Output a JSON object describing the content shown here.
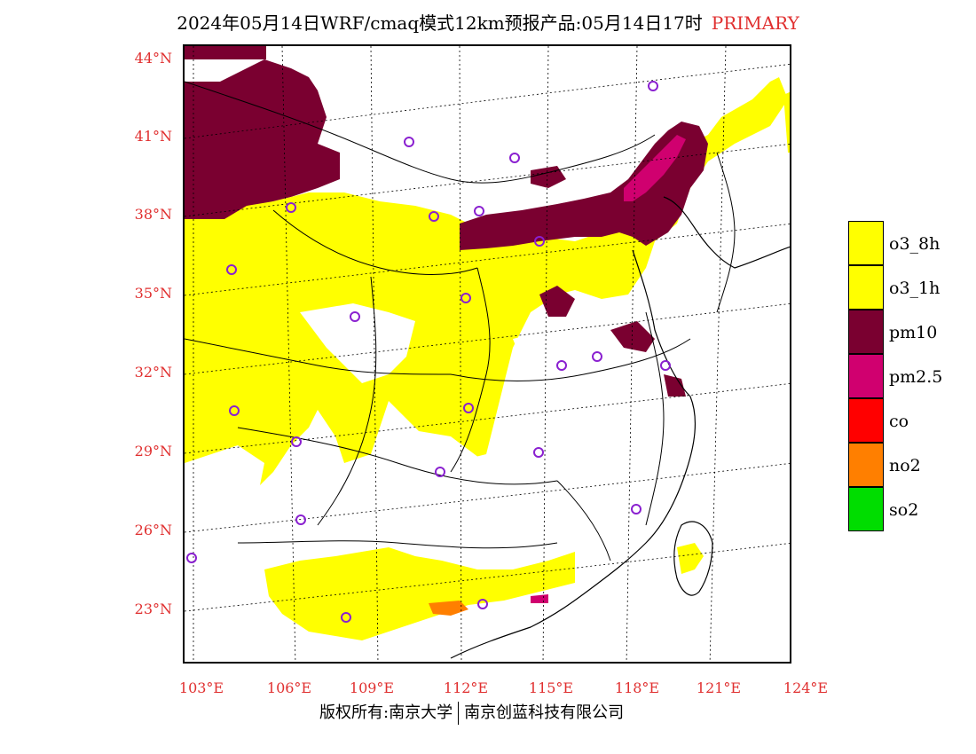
{
  "header": {
    "title": "2024年05月14日WRF/cmaq模式12km预报产品:05月14日17时",
    "tag": "PRIMARY"
  },
  "map": {
    "lat_labels": [
      "44°N",
      "41°N",
      "38°N",
      "35°N",
      "32°N",
      "29°N",
      "26°N",
      "23°N"
    ],
    "lon_labels": [
      "103°E",
      "106°E",
      "109°E",
      "112°E",
      "115°E",
      "118°E",
      "121°E",
      "124°E"
    ]
  },
  "legend": {
    "items": [
      {
        "label": "o3_8h",
        "color": "#ffff00"
      },
      {
        "label": "o3_1h",
        "color": "#ffff00"
      },
      {
        "label": "pm10",
        "color": "#7a0030"
      },
      {
        "label": "pm2.5",
        "color": "#d0006f"
      },
      {
        "label": "co",
        "color": "#ff0000"
      },
      {
        "label": "no2",
        "color": "#ff7f00"
      },
      {
        "label": "so2",
        "color": "#00dd00"
      }
    ]
  },
  "footer": {
    "left": "版权所有:南京大学",
    "right": "南京创蓝科技有限公司"
  }
}
